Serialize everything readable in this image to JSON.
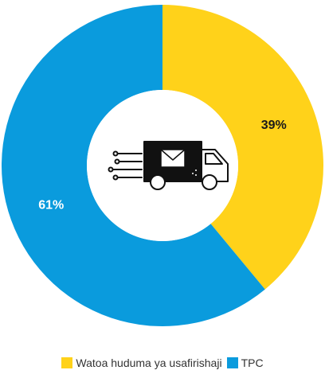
{
  "chart_data": {
    "type": "pie",
    "donut": true,
    "categories": [
      "Watoa huduma ya usafirishaji",
      "TPC"
    ],
    "values": [
      39,
      61
    ],
    "labels": [
      "39%",
      "61%"
    ],
    "colors": [
      "#FFD21A",
      "#0A9BDD"
    ],
    "label_colors": [
      "#1a1a1a",
      "#ffffff"
    ],
    "title": "",
    "legend_position": "bottom",
    "center_icon": "mail-truck-icon"
  },
  "legend": {
    "items": [
      {
        "label": "Watoa huduma ya usafirishaji",
        "color": "#FFD21A"
      },
      {
        "label": "TPC",
        "color": "#0A9BDD"
      }
    ]
  }
}
